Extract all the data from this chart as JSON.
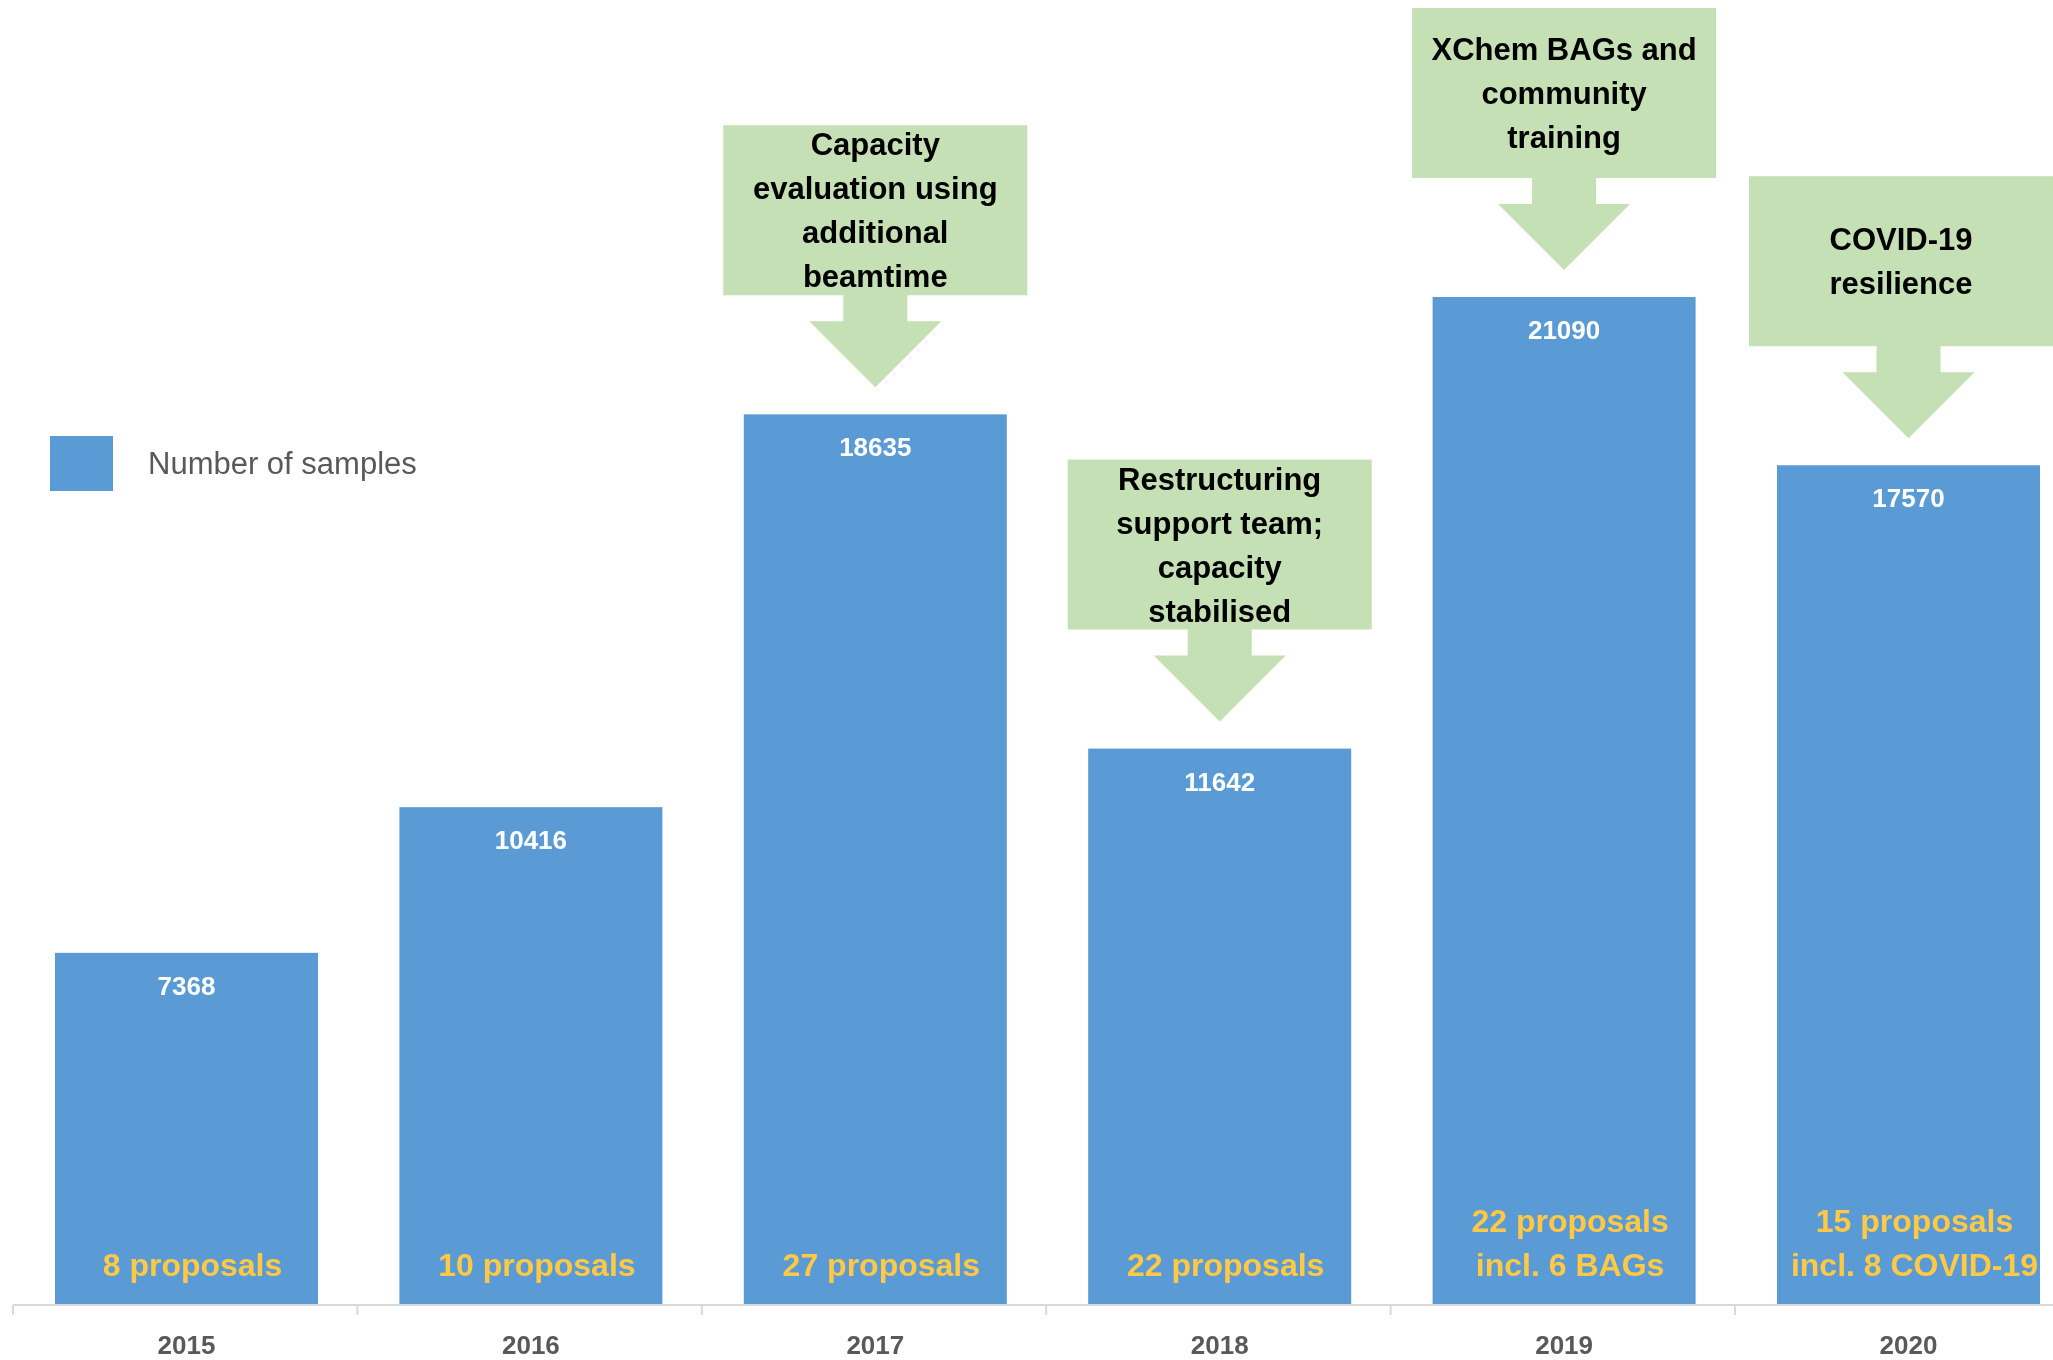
{
  "chart_data": {
    "type": "bar",
    "categories": [
      "2015",
      "2016",
      "2017",
      "2018",
      "2019",
      "2020"
    ],
    "series": [
      {
        "name": "Number of samples",
        "color": "#5b9bd5",
        "values": [
          7368,
          10416,
          18635,
          11642,
          21090,
          17570
        ]
      }
    ],
    "data_labels": true,
    "legend": "top left",
    "annotations": [
      "Capacity\nevaluation using\nadditional\nbeamtime",
      "Restructuring\nsupport team;\ncapacity\nstabilised",
      "XChem BAGs and\ncommunity\ntraining",
      "COVID-19\nresilience",
      "8 proposals",
      "10 proposals",
      "27 proposals",
      "22 proposals",
      "22 proposals\nincl. 6 BAGs",
      "15 proposals\nincl. 8 COVID-19"
    ]
  }
}
